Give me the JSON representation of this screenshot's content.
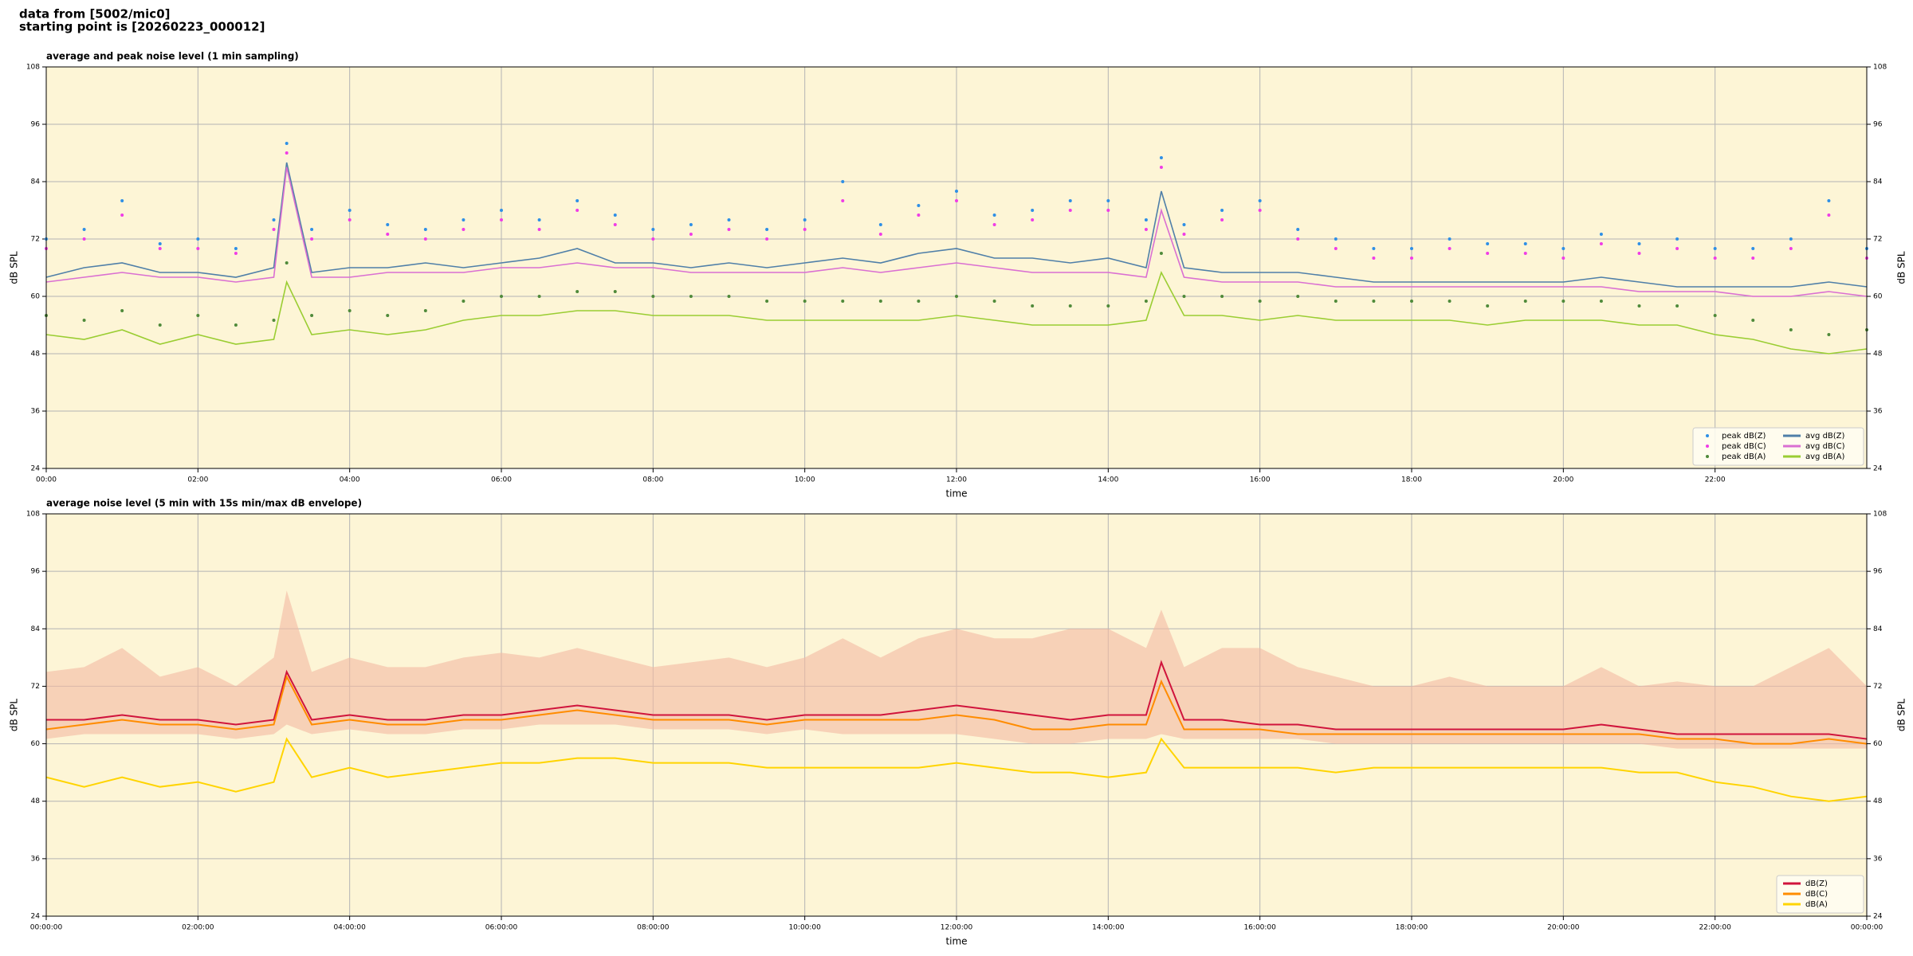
{
  "header": {
    "line1": "data from [5002/mic0]",
    "line2": "starting point is [20260223_000012]"
  },
  "chart_data": [
    {
      "type": "line",
      "title": "average and peak noise level (1 min sampling)",
      "xlabel": "time",
      "ylabel": "dB SPL",
      "x": [
        0,
        0.5,
        1,
        1.5,
        2,
        2.5,
        3,
        3.17,
        3.5,
        4,
        4.5,
        5,
        5.5,
        6,
        6.5,
        7,
        7.5,
        8,
        8.5,
        9,
        9.5,
        10,
        10.5,
        11,
        11.5,
        12,
        12.5,
        13,
        13.5,
        14,
        14.5,
        14.7,
        15,
        15.5,
        16,
        16.5,
        17,
        17.5,
        18,
        18.5,
        19,
        19.5,
        20,
        20.5,
        21,
        21.5,
        22,
        22.5,
        23,
        23.5,
        24
      ],
      "xlim": [
        0,
        24
      ],
      "ylim": [
        24,
        108
      ],
      "yticks": [
        24,
        36,
        48,
        60,
        72,
        84,
        96,
        108
      ],
      "xticks": [
        {
          "value": 0,
          "label": "00:00"
        },
        {
          "value": 2,
          "label": "02:00"
        },
        {
          "value": 4,
          "label": "04:00"
        },
        {
          "value": 6,
          "label": "06:00"
        },
        {
          "value": 8,
          "label": "08:00"
        },
        {
          "value": 10,
          "label": "10:00"
        },
        {
          "value": 12,
          "label": "12:00"
        },
        {
          "value": 14,
          "label": "14:00"
        },
        {
          "value": 16,
          "label": "16:00"
        },
        {
          "value": 18,
          "label": "18:00"
        },
        {
          "value": 20,
          "label": "20:00"
        },
        {
          "value": 22,
          "label": "22:00"
        }
      ],
      "grid": true,
      "right_axis": true,
      "legend": "lower right",
      "legend_columns": 2,
      "series": [
        {
          "name": "peak dB(Z)",
          "type": "scatter",
          "color": "#2e8fe6",
          "values": [
            72,
            74,
            80,
            71,
            72,
            70,
            76,
            92,
            74,
            78,
            75,
            74,
            76,
            78,
            76,
            80,
            77,
            74,
            75,
            76,
            74,
            76,
            84,
            75,
            79,
            82,
            77,
            78,
            80,
            80,
            76,
            89,
            75,
            78,
            80,
            74,
            72,
            70,
            70,
            72,
            71,
            71,
            70,
            73,
            71,
            72,
            70,
            70,
            72,
            80,
            70
          ]
        },
        {
          "name": "peak dB(C)",
          "type": "scatter",
          "color": "#f03ce6",
          "values": [
            70,
            72,
            77,
            70,
            70,
            69,
            74,
            90,
            72,
            76,
            73,
            72,
            74,
            76,
            74,
            78,
            75,
            72,
            73,
            74,
            72,
            74,
            80,
            73,
            77,
            80,
            75,
            76,
            78,
            78,
            74,
            87,
            73,
            76,
            78,
            72,
            70,
            68,
            68,
            70,
            69,
            69,
            68,
            71,
            69,
            70,
            68,
            68,
            70,
            77,
            68
          ]
        },
        {
          "name": "peak dB(A)",
          "type": "scatter",
          "color": "#4f8a3a",
          "values": [
            56,
            55,
            57,
            54,
            56,
            54,
            55,
            67,
            56,
            57,
            56,
            57,
            59,
            60,
            60,
            61,
            61,
            60,
            60,
            60,
            59,
            59,
            59,
            59,
            59,
            60,
            59,
            58,
            58,
            58,
            59,
            69,
            60,
            60,
            59,
            60,
            59,
            59,
            59,
            59,
            58,
            59,
            59,
            59,
            58,
            58,
            56,
            55,
            53,
            52,
            53
          ]
        },
        {
          "name": "avg dB(Z)",
          "type": "line",
          "color": "#4f7fa8",
          "values": [
            64,
            66,
            67,
            65,
            65,
            64,
            66,
            88,
            65,
            66,
            66,
            67,
            66,
            67,
            68,
            70,
            67,
            67,
            66,
            67,
            66,
            67,
            68,
            67,
            69,
            70,
            68,
            68,
            67,
            68,
            66,
            82,
            66,
            65,
            65,
            65,
            64,
            63,
            63,
            63,
            63,
            63,
            63,
            64,
            63,
            62,
            62,
            62,
            62,
            63,
            62
          ]
        },
        {
          "name": "avg dB(C)",
          "type": "line",
          "color": "#da6fd2",
          "values": [
            63,
            64,
            65,
            64,
            64,
            63,
            64,
            87,
            64,
            64,
            65,
            65,
            65,
            66,
            66,
            67,
            66,
            66,
            65,
            65,
            65,
            65,
            66,
            65,
            66,
            67,
            66,
            65,
            65,
            65,
            64,
            78,
            64,
            63,
            63,
            63,
            62,
            62,
            62,
            62,
            62,
            62,
            62,
            62,
            61,
            61,
            61,
            60,
            60,
            61,
            60
          ]
        },
        {
          "name": "avg dB(A)",
          "type": "line",
          "color": "#9acd32",
          "values": [
            52,
            51,
            53,
            50,
            52,
            50,
            51,
            63,
            52,
            53,
            52,
            53,
            55,
            56,
            56,
            57,
            57,
            56,
            56,
            56,
            55,
            55,
            55,
            55,
            55,
            56,
            55,
            54,
            54,
            54,
            55,
            65,
            56,
            56,
            55,
            56,
            55,
            55,
            55,
            55,
            54,
            55,
            55,
            55,
            54,
            54,
            52,
            51,
            49,
            48,
            49
          ]
        }
      ]
    },
    {
      "type": "line",
      "title": "average noise level (5 min with 15s min/max dB envelope)",
      "xlabel": "time",
      "ylabel": "dB SPL",
      "x": [
        0,
        0.5,
        1,
        1.5,
        2,
        2.5,
        3,
        3.17,
        3.5,
        4,
        4.5,
        5,
        5.5,
        6,
        6.5,
        7,
        7.5,
        8,
        8.5,
        9,
        9.5,
        10,
        10.5,
        11,
        11.5,
        12,
        12.5,
        13,
        13.5,
        14,
        14.5,
        14.7,
        15,
        15.5,
        16,
        16.5,
        17,
        17.5,
        18,
        18.5,
        19,
        19.5,
        20,
        20.5,
        21,
        21.5,
        22,
        22.5,
        23,
        23.5,
        24
      ],
      "xlim": [
        0,
        24
      ],
      "ylim": [
        24,
        108
      ],
      "yticks": [
        24,
        36,
        48,
        60,
        72,
        84,
        96,
        108
      ],
      "xticks": [
        {
          "value": 0,
          "label": "00:00:00"
        },
        {
          "value": 2,
          "label": "02:00:00"
        },
        {
          "value": 4,
          "label": "04:00:00"
        },
        {
          "value": 6,
          "label": "06:00:00"
        },
        {
          "value": 8,
          "label": "08:00:00"
        },
        {
          "value": 10,
          "label": "10:00:00"
        },
        {
          "value": 12,
          "label": "12:00:00"
        },
        {
          "value": 14,
          "label": "14:00:00"
        },
        {
          "value": 16,
          "label": "16:00:00"
        },
        {
          "value": 18,
          "label": "18:00:00"
        },
        {
          "value": 20,
          "label": "20:00:00"
        },
        {
          "value": 22,
          "label": "22:00:00"
        },
        {
          "value": 24,
          "label": "00:00:00"
        }
      ],
      "grid": true,
      "right_axis": true,
      "legend": "lower right",
      "legend_columns": 1,
      "envelope": {
        "color": "#f4b9a2",
        "low": [
          61,
          62,
          62,
          62,
          62,
          61,
          62,
          64,
          62,
          63,
          62,
          62,
          63,
          63,
          64,
          64,
          64,
          63,
          63,
          63,
          62,
          63,
          62,
          62,
          62,
          62,
          61,
          60,
          60,
          61,
          61,
          62,
          61,
          61,
          61,
          61,
          60,
          60,
          60,
          60,
          60,
          60,
          60,
          60,
          60,
          59,
          59,
          59,
          59,
          59,
          59
        ],
        "high": [
          75,
          76,
          80,
          74,
          76,
          72,
          78,
          92,
          75,
          78,
          76,
          76,
          78,
          79,
          78,
          80,
          78,
          76,
          77,
          78,
          76,
          78,
          82,
          78,
          82,
          84,
          82,
          82,
          84,
          84,
          80,
          88,
          76,
          80,
          80,
          76,
          74,
          72,
          72,
          74,
          72,
          72,
          72,
          76,
          72,
          73,
          72,
          72,
          76,
          80,
          72
        ]
      },
      "series": [
        {
          "name": "dB(Z)",
          "type": "line",
          "color": "#d0143c",
          "values": [
            65,
            65,
            66,
            65,
            65,
            64,
            65,
            75,
            65,
            66,
            65,
            65,
            66,
            66,
            67,
            68,
            67,
            66,
            66,
            66,
            65,
            66,
            66,
            66,
            67,
            68,
            67,
            66,
            65,
            66,
            66,
            77,
            65,
            65,
            64,
            64,
            63,
            63,
            63,
            63,
            63,
            63,
            63,
            64,
            63,
            62,
            62,
            62,
            62,
            62,
            61
          ]
        },
        {
          "name": "dB(C)",
          "type": "line",
          "color": "#ff8c00",
          "values": [
            63,
            64,
            65,
            64,
            64,
            63,
            64,
            74,
            64,
            65,
            64,
            64,
            65,
            65,
            66,
            67,
            66,
            65,
            65,
            65,
            64,
            65,
            65,
            65,
            65,
            66,
            65,
            63,
            63,
            64,
            64,
            73,
            63,
            63,
            63,
            62,
            62,
            62,
            62,
            62,
            62,
            62,
            62,
            62,
            62,
            61,
            61,
            60,
            60,
            61,
            60
          ]
        },
        {
          "name": "dB(A)",
          "type": "line",
          "color": "#ffd400",
          "values": [
            53,
            51,
            53,
            51,
            52,
            50,
            52,
            61,
            53,
            55,
            53,
            54,
            55,
            56,
            56,
            57,
            57,
            56,
            56,
            56,
            55,
            55,
            55,
            55,
            55,
            56,
            55,
            54,
            54,
            53,
            54,
            61,
            55,
            55,
            55,
            55,
            54,
            55,
            55,
            55,
            55,
            55,
            55,
            55,
            54,
            54,
            52,
            51,
            49,
            48,
            49
          ]
        }
      ]
    }
  ]
}
